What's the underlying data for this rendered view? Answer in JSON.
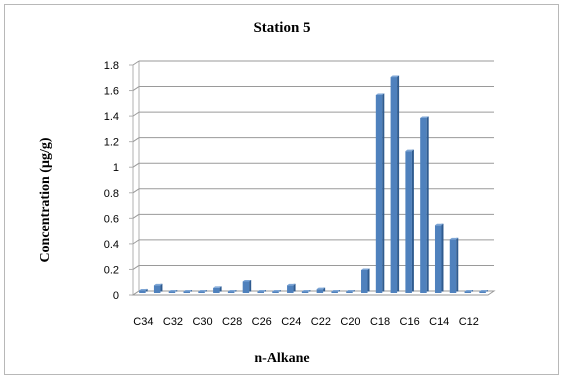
{
  "chart_data": {
    "type": "bar",
    "title": "Station 5",
    "xlabel": "n-Alkane",
    "ylabel": "Concentration (µg/g)",
    "ylim": [
      0,
      1.8
    ],
    "yticks": [
      "0",
      "0.2",
      "0.4",
      "0.6",
      "0.8",
      "1",
      "1.2",
      "1.4",
      "1.6",
      "1.8"
    ],
    "grid": true,
    "legend": "none",
    "bar_color": "#4f81bd",
    "categories": [
      "C34",
      "C33",
      "C32",
      "C31",
      "C30",
      "C29",
      "C28",
      "C27",
      "C26",
      "C25",
      "C24",
      "C23",
      "C22",
      "C21",
      "C20",
      "C19",
      "C18",
      "C17",
      "C16",
      "C15",
      "C14",
      "C13",
      "C12",
      "C11"
    ],
    "visible_tick_labels": [
      "C34",
      "C32",
      "C30",
      "C28",
      "C26",
      "C24",
      "C22",
      "C20",
      "C18",
      "C16",
      "C14",
      "C12"
    ],
    "values": [
      0.02,
      0.06,
      0.01,
      0.0,
      0.0,
      0.04,
      0.01,
      0.09,
      0.01,
      0.0,
      0.06,
      0.0,
      0.03,
      0.0,
      0.0,
      0.18,
      1.55,
      1.69,
      1.11,
      1.37,
      0.53,
      0.42,
      0.0,
      0.0
    ]
  }
}
